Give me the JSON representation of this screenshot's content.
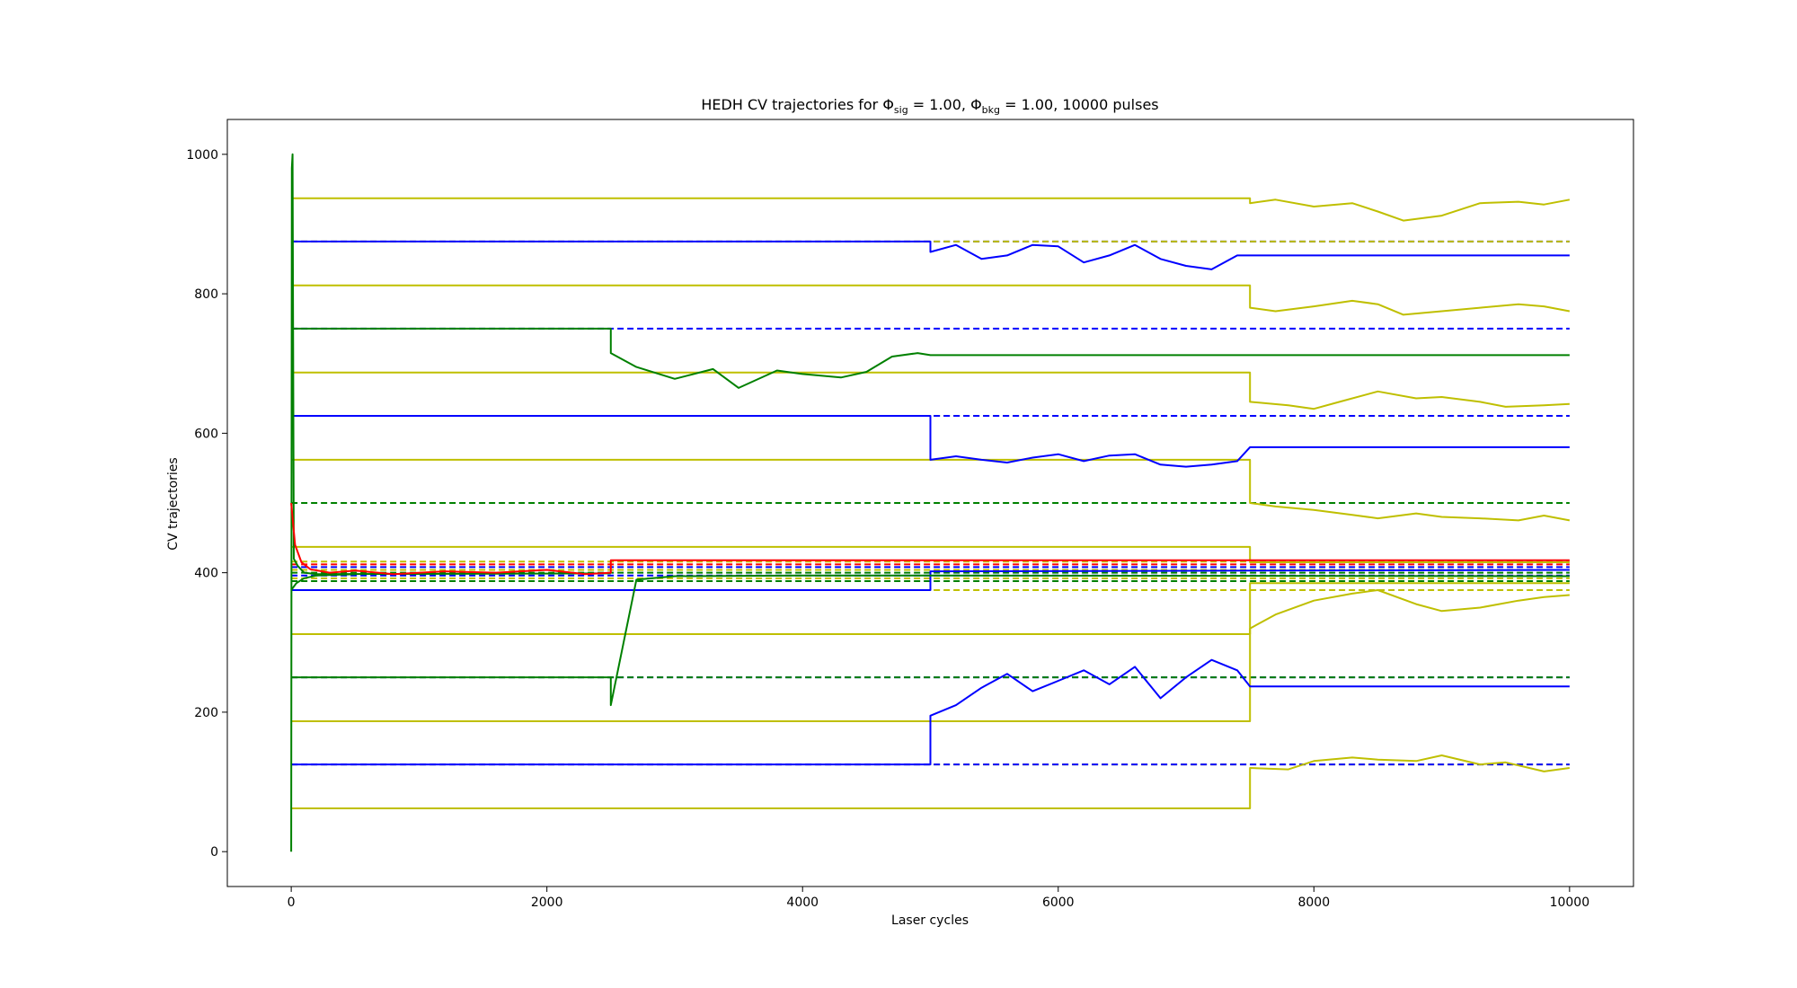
{
  "chart_data": {
    "type": "line",
    "title_main": "HEDH CV trajectories for Φ",
    "title_sub1": "sig",
    "title_mid": " = 1.00, Φ",
    "title_sub2": "bkg",
    "title_tail": " = 1.00, 10000 pulses",
    "xlabel": "Laser cycles",
    "ylabel": "CV trajectories",
    "xlim": [
      -500,
      10500
    ],
    "ylim": [
      -50,
      1050
    ],
    "xticks": [
      0,
      2000,
      4000,
      6000,
      8000,
      10000
    ],
    "yticks": [
      0,
      200,
      400,
      600,
      800,
      1000
    ],
    "grid": false,
    "colors": {
      "yellow": "#bfbf00",
      "blue": "#0000ff",
      "green": "#008000",
      "red": "#ff0000"
    },
    "dashed_levels": [
      {
        "y": 875,
        "color": "#0000ff"
      },
      {
        "y": 875,
        "color": "#bfbf00"
      },
      {
        "y": 750,
        "color": "#0000ff"
      },
      {
        "y": 625,
        "color": "#bfbf00"
      },
      {
        "y": 625,
        "color": "#0000ff"
      },
      {
        "y": 500,
        "color": "#008000"
      },
      {
        "y": 416,
        "color": "#bfbf00"
      },
      {
        "y": 412,
        "color": "#ff0000"
      },
      {
        "y": 408,
        "color": "#0000ff"
      },
      {
        "y": 404,
        "color": "#bfbf00"
      },
      {
        "y": 400,
        "color": "#008000"
      },
      {
        "y": 396,
        "color": "#0000ff"
      },
      {
        "y": 392,
        "color": "#bfbf00"
      },
      {
        "y": 388,
        "color": "#008000"
      },
      {
        "y": 375,
        "color": "#bfbf00"
      },
      {
        "y": 250,
        "color": "#0000ff"
      },
      {
        "y": 250,
        "color": "#008000"
      },
      {
        "y": 125,
        "color": "#bfbf00"
      },
      {
        "y": 125,
        "color": "#0000ff"
      }
    ],
    "series": [
      {
        "color": "#bfbf00",
        "points": [
          [
            0,
            937
          ],
          [
            7500,
            937
          ],
          [
            7500,
            930
          ],
          [
            7700,
            935
          ],
          [
            8000,
            925
          ],
          [
            8300,
            930
          ],
          [
            8500,
            918
          ],
          [
            8700,
            905
          ],
          [
            9000,
            912
          ],
          [
            9300,
            930
          ],
          [
            9600,
            932
          ],
          [
            9800,
            928
          ],
          [
            10000,
            935
          ]
        ]
      },
      {
        "color": "#bfbf00",
        "points": [
          [
            0,
            812
          ],
          [
            7500,
            812
          ],
          [
            7500,
            780
          ],
          [
            7700,
            775
          ],
          [
            8000,
            782
          ],
          [
            8300,
            790
          ],
          [
            8500,
            785
          ],
          [
            8700,
            770
          ],
          [
            9000,
            775
          ],
          [
            9300,
            780
          ],
          [
            9600,
            785
          ],
          [
            9800,
            782
          ],
          [
            10000,
            775
          ]
        ]
      },
      {
        "color": "#bfbf00",
        "points": [
          [
            0,
            687
          ],
          [
            7500,
            687
          ],
          [
            7500,
            645
          ],
          [
            7800,
            640
          ],
          [
            8000,
            635
          ],
          [
            8200,
            645
          ],
          [
            8500,
            660
          ],
          [
            8800,
            650
          ],
          [
            9000,
            652
          ],
          [
            9300,
            645
          ],
          [
            9500,
            638
          ],
          [
            9800,
            640
          ],
          [
            10000,
            642
          ]
        ]
      },
      {
        "color": "#bfbf00",
        "points": [
          [
            0,
            562
          ],
          [
            7500,
            562
          ],
          [
            7500,
            500
          ],
          [
            7700,
            495
          ],
          [
            8000,
            490
          ],
          [
            8300,
            483
          ],
          [
            8500,
            478
          ],
          [
            8800,
            485
          ],
          [
            9000,
            480
          ],
          [
            9300,
            478
          ],
          [
            9600,
            475
          ],
          [
            9800,
            482
          ],
          [
            10000,
            475
          ]
        ]
      },
      {
        "color": "#bfbf00",
        "points": [
          [
            0,
            437
          ],
          [
            7500,
            437
          ],
          [
            7500,
            415
          ],
          [
            10000,
            415
          ]
        ]
      },
      {
        "color": "#bfbf00",
        "points": [
          [
            0,
            312
          ],
          [
            7500,
            312
          ],
          [
            7500,
            320
          ],
          [
            7700,
            340
          ],
          [
            8000,
            360
          ],
          [
            8300,
            370
          ],
          [
            8500,
            375
          ],
          [
            8800,
            355
          ],
          [
            9000,
            345
          ],
          [
            9300,
            350
          ],
          [
            9600,
            360
          ],
          [
            9800,
            365
          ],
          [
            10000,
            368
          ]
        ]
      },
      {
        "color": "#bfbf00",
        "points": [
          [
            0,
            187
          ],
          [
            7500,
            187
          ],
          [
            7500,
            385
          ],
          [
            10000,
            385
          ]
        ]
      },
      {
        "color": "#bfbf00",
        "points": [
          [
            0,
            62
          ],
          [
            7500,
            62
          ],
          [
            7500,
            120
          ],
          [
            7800,
            118
          ],
          [
            8000,
            130
          ],
          [
            8300,
            135
          ],
          [
            8500,
            132
          ],
          [
            8800,
            130
          ],
          [
            9000,
            138
          ],
          [
            9300,
            125
          ],
          [
            9500,
            128
          ],
          [
            9800,
            115
          ],
          [
            10000,
            120
          ]
        ]
      },
      {
        "color": "#0000ff",
        "points": [
          [
            0,
            875
          ],
          [
            5000,
            875
          ],
          [
            5000,
            860
          ],
          [
            5200,
            870
          ],
          [
            5400,
            850
          ],
          [
            5600,
            855
          ],
          [
            5800,
            870
          ],
          [
            6000,
            868
          ],
          [
            6200,
            845
          ],
          [
            6400,
            855
          ],
          [
            6600,
            870
          ],
          [
            6800,
            850
          ],
          [
            7000,
            840
          ],
          [
            7200,
            835
          ],
          [
            7400,
            855
          ],
          [
            7500,
            855
          ],
          [
            10000,
            855
          ]
        ]
      },
      {
        "color": "#0000ff",
        "points": [
          [
            0,
            625
          ],
          [
            5000,
            625
          ],
          [
            5000,
            562
          ],
          [
            5200,
            567
          ],
          [
            5400,
            562
          ],
          [
            5600,
            558
          ],
          [
            5800,
            565
          ],
          [
            6000,
            570
          ],
          [
            6200,
            560
          ],
          [
            6400,
            568
          ],
          [
            6600,
            570
          ],
          [
            6800,
            555
          ],
          [
            7000,
            552
          ],
          [
            7200,
            555
          ],
          [
            7400,
            560
          ],
          [
            7500,
            580
          ],
          [
            10000,
            580
          ]
        ]
      },
      {
        "color": "#0000ff",
        "points": [
          [
            0,
            125
          ],
          [
            5000,
            125
          ],
          [
            5000,
            195
          ],
          [
            5200,
            210
          ],
          [
            5400,
            235
          ],
          [
            5600,
            255
          ],
          [
            5800,
            230
          ],
          [
            6000,
            245
          ],
          [
            6200,
            260
          ],
          [
            6400,
            240
          ],
          [
            6600,
            265
          ],
          [
            6800,
            220
          ],
          [
            7000,
            250
          ],
          [
            7200,
            275
          ],
          [
            7400,
            260
          ],
          [
            7500,
            237
          ],
          [
            10000,
            237
          ]
        ]
      },
      {
        "color": "#0000ff",
        "points": [
          [
            0,
            375
          ],
          [
            5000,
            375
          ],
          [
            5000,
            402
          ],
          [
            10000,
            404
          ]
        ]
      },
      {
        "color": "#008000",
        "points": [
          [
            0,
            750
          ],
          [
            2500,
            750
          ],
          [
            2500,
            715
          ],
          [
            2700,
            695
          ],
          [
            3000,
            678
          ],
          [
            3300,
            692
          ],
          [
            3500,
            665
          ],
          [
            3800,
            690
          ],
          [
            4000,
            685
          ],
          [
            4300,
            680
          ],
          [
            4500,
            688
          ],
          [
            4700,
            710
          ],
          [
            4900,
            715
          ],
          [
            5000,
            712
          ],
          [
            10000,
            712
          ]
        ]
      },
      {
        "color": "#008000",
        "points": [
          [
            0,
            250
          ],
          [
            2500,
            250
          ],
          [
            2500,
            210
          ],
          [
            2700,
            390
          ],
          [
            3000,
            395
          ],
          [
            4000,
            396
          ],
          [
            5000,
            396
          ],
          [
            10000,
            395
          ]
        ]
      },
      {
        "color": "#008000",
        "points": [
          [
            0,
            0
          ],
          [
            5,
            980
          ],
          [
            10,
            1000
          ],
          [
            20,
            420
          ],
          [
            50,
            410
          ],
          [
            100,
            400
          ],
          [
            200,
            398
          ],
          [
            2500,
            399
          ]
        ]
      },
      {
        "color": "#008000",
        "points": [
          [
            0,
            375
          ],
          [
            40,
            385
          ],
          [
            100,
            392
          ],
          [
            200,
            396
          ],
          [
            500,
            398
          ]
        ]
      },
      {
        "color": "#ff0000",
        "points": [
          [
            0,
            500
          ],
          [
            30,
            440
          ],
          [
            80,
            415
          ],
          [
            150,
            405
          ],
          [
            300,
            400
          ],
          [
            500,
            403
          ],
          [
            800,
            398
          ],
          [
            1200,
            402
          ],
          [
            1600,
            400
          ],
          [
            2000,
            404
          ],
          [
            2300,
            398
          ],
          [
            2500,
            400
          ],
          [
            2500,
            418
          ],
          [
            10000,
            418
          ]
        ]
      }
    ]
  }
}
